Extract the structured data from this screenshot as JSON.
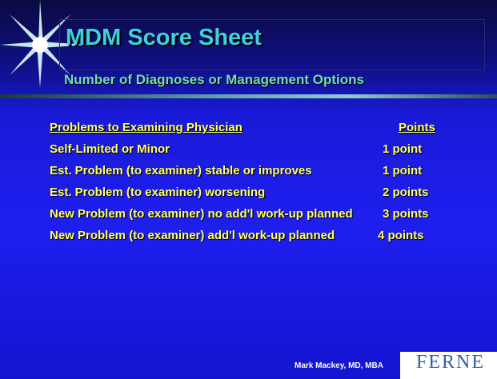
{
  "header": {
    "title": "MDM Score Sheet",
    "subtitle": "Number of Diagnoses or Management Options"
  },
  "table": {
    "columns": [
      "Problems to Examining Physician",
      "Points"
    ],
    "rows": [
      [
        "Self-Limited or Minor",
        "1 point"
      ],
      [
        "Est. Problem (to examiner) stable or improves",
        "1 point"
      ],
      [
        "Est. Problem (to examiner) worsening",
        "2 points"
      ],
      [
        "New Problem (to examiner) no add'l work-up planned",
        "3 points"
      ],
      [
        "New Problem (to examiner) add'l work-up planned",
        "4 points"
      ]
    ]
  },
  "footer": {
    "author": "Mark Mackey, MD, MBA",
    "logo": "FERNE"
  }
}
